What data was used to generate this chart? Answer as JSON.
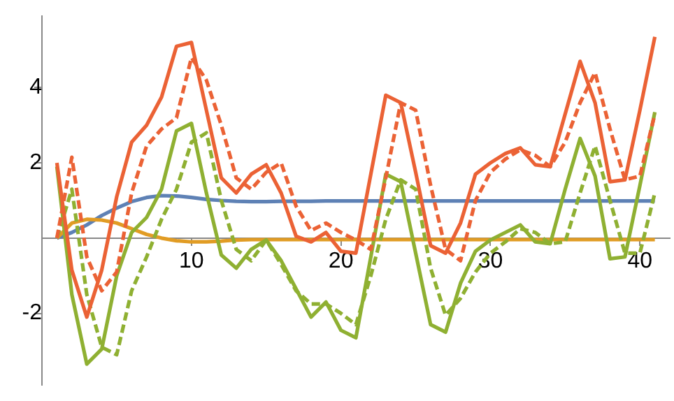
{
  "chart_data": {
    "type": "line",
    "x": [
      1,
      2,
      3,
      4,
      5,
      6,
      7,
      8,
      9,
      10,
      11,
      12,
      13,
      14,
      15,
      16,
      17,
      18,
      19,
      20,
      21,
      22,
      23,
      24,
      25,
      26,
      27,
      28,
      29,
      30,
      31,
      32,
      33,
      34,
      35,
      36,
      37,
      38,
      39,
      40,
      41
    ],
    "xlim": [
      0,
      42
    ],
    "ylim": [
      -3.9,
      5.9
    ],
    "xticks": [
      10,
      20,
      30,
      40
    ],
    "yticks": [
      -2,
      2,
      4
    ],
    "grid": false,
    "legend": false,
    "marker": "none",
    "series": [
      {
        "color": "#5e81b5",
        "line_style": "solid",
        "values": [
          0,
          0.15,
          0.35,
          0.6,
          0.8,
          0.97,
          1.08,
          1.13,
          1.12,
          1.08,
          1.03,
          1.0,
          0.98,
          0.97,
          0.97,
          0.98,
          0.98,
          0.98,
          0.99,
          0.99,
          0.99,
          0.99,
          0.99,
          0.99,
          0.99,
          0.99,
          0.99,
          0.99,
          0.99,
          0.99,
          0.99,
          0.99,
          0.99,
          0.99,
          0.99,
          0.99,
          0.99,
          0.99,
          0.99,
          0.99,
          0.99
        ]
      },
      {
        "color": "#e19c24",
        "line_style": "solid",
        "values": [
          0,
          0.4,
          0.5,
          0.48,
          0.4,
          0.25,
          0.1,
          0,
          -0.07,
          -0.1,
          -0.1,
          -0.08,
          -0.05,
          -0.04,
          -0.04,
          -0.04,
          -0.04,
          -0.04,
          -0.04,
          -0.04,
          -0.04,
          -0.04,
          -0.04,
          -0.04,
          -0.04,
          -0.04,
          -0.04,
          -0.04,
          -0.04,
          -0.04,
          -0.04,
          -0.04,
          -0.04,
          -0.04,
          -0.04,
          -0.04,
          -0.04,
          -0.04,
          -0.04,
          -0.04,
          -0.04
        ]
      },
      {
        "color": "#8fb032",
        "line_style": "solid",
        "values": [
          1.9,
          -1.5,
          -3.35,
          -2.95,
          -1.0,
          0.15,
          0.55,
          1.3,
          2.85,
          3.05,
          1.2,
          -0.45,
          -0.8,
          -0.3,
          -0.05,
          -0.6,
          -1.35,
          -2.1,
          -1.7,
          -2.45,
          -2.65,
          -0.5,
          1.7,
          1.5,
          -0.4,
          -2.3,
          -2.5,
          -1.2,
          -0.35,
          -0.05,
          0.15,
          0.35,
          -0.1,
          -0.15,
          1.3,
          2.65,
          1.65,
          -0.55,
          -0.5,
          1.4,
          3.35
        ]
      },
      {
        "color": "#8fb032",
        "line_style": "dashed",
        "values": [
          0,
          1.3,
          -1.5,
          -2.9,
          -3.1,
          -1.4,
          -0.5,
          0.5,
          1.3,
          2.55,
          2.8,
          1.0,
          -0.3,
          -0.6,
          -0.05,
          -0.7,
          -1.4,
          -1.75,
          -1.75,
          -2.0,
          -2.3,
          -1.0,
          0.5,
          1.55,
          1.3,
          -0.8,
          -2.05,
          -1.6,
          -0.9,
          -0.4,
          -0.1,
          0.25,
          0.15,
          -0.15,
          -0.1,
          1.2,
          2.45,
          1.0,
          -0.4,
          -0.4,
          1.2
        ]
      },
      {
        "color": "#eb6235",
        "line_style": "solid",
        "values": [
          2.0,
          -0.85,
          -2.1,
          -0.85,
          1.1,
          2.55,
          3.0,
          3.75,
          5.1,
          5.2,
          3.4,
          1.6,
          1.2,
          1.7,
          1.95,
          1.2,
          0.05,
          -0.1,
          0.15,
          -0.35,
          -0.4,
          1.7,
          3.8,
          3.6,
          1.75,
          -0.2,
          -0.4,
          0.4,
          1.7,
          2.0,
          2.25,
          2.4,
          1.95,
          1.9,
          3.3,
          4.7,
          3.6,
          1.5,
          1.55,
          3.4,
          5.35
        ]
      },
      {
        "color": "#eb6235",
        "line_style": "dashed",
        "values": [
          0,
          2.15,
          -0.5,
          -1.4,
          -0.9,
          1.2,
          2.45,
          2.9,
          3.2,
          4.8,
          4.2,
          3.0,
          1.6,
          1.3,
          1.75,
          2.0,
          0.85,
          0.2,
          0.4,
          0.15,
          -0.05,
          -0.3,
          1.6,
          3.6,
          3.4,
          1.4,
          -0.3,
          -0.6,
          1.0,
          1.75,
          2.1,
          2.35,
          2.2,
          1.9,
          2.55,
          3.6,
          4.4,
          2.9,
          1.55,
          1.65,
          3.3
        ]
      }
    ]
  }
}
